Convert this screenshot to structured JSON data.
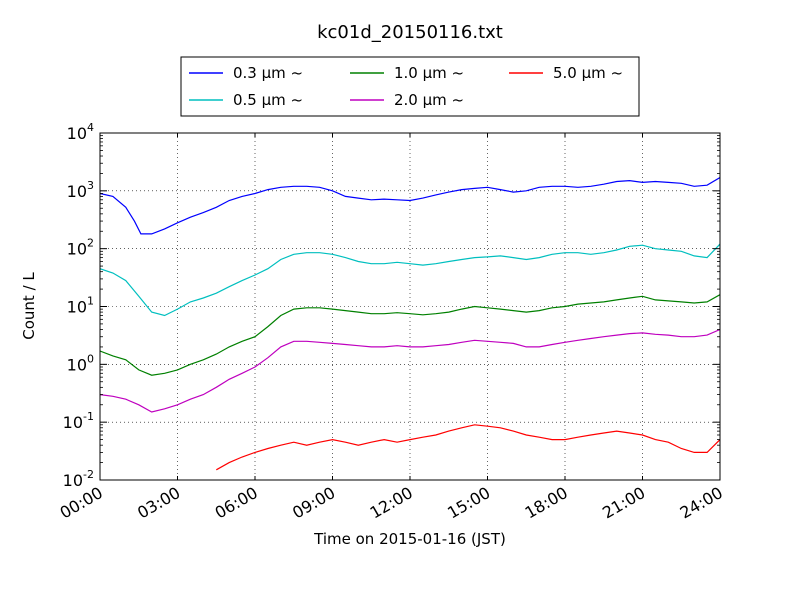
{
  "chart_data": {
    "type": "line",
    "title": "kc01d_20150116.txt",
    "xlabel": "Time on 2015-01-16 (JST)",
    "ylabel": "Count / L",
    "yscale": "log",
    "ylim": [
      0.01,
      10000
    ],
    "xlim": [
      "2015-01-16 00:00",
      "2015-01-17 00:00"
    ],
    "x_tick_labels": [
      "00:00",
      "03:00",
      "06:00",
      "09:00",
      "12:00",
      "15:00",
      "18:00",
      "21:00",
      "24:00"
    ],
    "y_tick_labels": [
      {
        "base": "10",
        "exp": "-2"
      },
      {
        "base": "10",
        "exp": "-1"
      },
      {
        "base": "10",
        "exp": "0"
      },
      {
        "base": "10",
        "exp": "1"
      },
      {
        "base": "10",
        "exp": "2"
      },
      {
        "base": "10",
        "exp": "3"
      },
      {
        "base": "10",
        "exp": "4"
      }
    ],
    "grid": true,
    "legend_placement": "top",
    "series": [
      {
        "name": "0.3 μm ~",
        "color": "#0000ff",
        "x": [
          "00:00",
          "00:30",
          "01:00",
          "01:20",
          "01:35",
          "02:00",
          "02:30",
          "03:00",
          "03:30",
          "04:00",
          "04:30",
          "05:00",
          "05:30",
          "06:00",
          "06:30",
          "07:00",
          "07:30",
          "08:00",
          "08:30",
          "09:00",
          "09:30",
          "10:00",
          "10:30",
          "11:00",
          "11:30",
          "12:00",
          "12:30",
          "13:00",
          "13:30",
          "14:00",
          "14:30",
          "15:00",
          "15:30",
          "16:00",
          "16:30",
          "17:00",
          "17:30",
          "18:00",
          "18:30",
          "19:00",
          "19:30",
          "20:00",
          "20:30",
          "21:00",
          "21:30",
          "22:00",
          "22:30",
          "23:00",
          "23:30",
          "24:00"
        ],
        "y": [
          900,
          800,
          520,
          300,
          180,
          180,
          220,
          280,
          350,
          420,
          520,
          680,
          800,
          900,
          1050,
          1150,
          1200,
          1200,
          1150,
          1000,
          800,
          750,
          700,
          720,
          700,
          680,
          750,
          850,
          950,
          1050,
          1100,
          1150,
          1050,
          950,
          1000,
          1150,
          1200,
          1200,
          1150,
          1200,
          1300,
          1450,
          1500,
          1400,
          1450,
          1400,
          1350,
          1200,
          1250,
          1700
        ]
      },
      {
        "name": "0.5 μm ~",
        "color": "#00bfbf",
        "x": [
          "00:00",
          "00:30",
          "01:00",
          "01:30",
          "02:00",
          "02:30",
          "03:00",
          "03:30",
          "04:00",
          "04:30",
          "05:00",
          "05:30",
          "06:00",
          "06:30",
          "07:00",
          "07:30",
          "08:00",
          "08:30",
          "09:00",
          "09:30",
          "10:00",
          "10:30",
          "11:00",
          "11:30",
          "12:00",
          "12:30",
          "13:00",
          "13:30",
          "14:00",
          "14:30",
          "15:00",
          "15:30",
          "16:00",
          "16:30",
          "17:00",
          "17:30",
          "18:00",
          "18:30",
          "19:00",
          "19:30",
          "20:00",
          "20:30",
          "21:00",
          "21:30",
          "22:00",
          "22:30",
          "23:00",
          "23:30",
          "24:00"
        ],
        "y": [
          45,
          38,
          28,
          15,
          8,
          7,
          9,
          12,
          14,
          17,
          22,
          28,
          35,
          45,
          65,
          80,
          85,
          85,
          80,
          70,
          60,
          55,
          55,
          58,
          55,
          52,
          55,
          60,
          65,
          70,
          72,
          75,
          70,
          65,
          70,
          80,
          85,
          85,
          80,
          85,
          95,
          110,
          115,
          100,
          95,
          90,
          75,
          70,
          120
        ]
      },
      {
        "name": "1.0 μm ~",
        "color": "#008000",
        "x": [
          "00:00",
          "00:30",
          "01:00",
          "01:30",
          "02:00",
          "02:30",
          "03:00",
          "03:30",
          "04:00",
          "04:30",
          "05:00",
          "05:30",
          "06:00",
          "06:30",
          "07:00",
          "07:30",
          "08:00",
          "08:30",
          "09:00",
          "09:30",
          "10:00",
          "10:30",
          "11:00",
          "11:30",
          "12:00",
          "12:30",
          "13:00",
          "13:30",
          "14:00",
          "14:30",
          "15:00",
          "15:30",
          "16:00",
          "16:30",
          "17:00",
          "17:30",
          "18:00",
          "18:30",
          "19:00",
          "19:30",
          "20:00",
          "20:30",
          "21:00",
          "21:30",
          "22:00",
          "22:30",
          "23:00",
          "23:30",
          "24:00"
        ],
        "y": [
          1.7,
          1.4,
          1.2,
          0.8,
          0.65,
          0.7,
          0.8,
          1.0,
          1.2,
          1.5,
          2.0,
          2.5,
          3.0,
          4.5,
          7.0,
          9.0,
          9.5,
          9.5,
          9.0,
          8.5,
          8.0,
          7.5,
          7.5,
          7.8,
          7.5,
          7.2,
          7.5,
          8.0,
          9.0,
          10.0,
          9.5,
          9.0,
          8.5,
          8.0,
          8.5,
          9.5,
          10,
          11,
          11.5,
          12,
          13,
          14,
          15,
          13,
          12.5,
          12,
          11.5,
          12,
          16
        ]
      },
      {
        "name": "2.0 μm ~",
        "color": "#bf00bf",
        "x": [
          "00:00",
          "00:30",
          "01:00",
          "01:30",
          "02:00",
          "02:30",
          "03:00",
          "03:30",
          "04:00",
          "04:30",
          "05:00",
          "05:30",
          "06:00",
          "06:30",
          "07:00",
          "07:30",
          "08:00",
          "08:30",
          "09:00",
          "09:30",
          "10:00",
          "10:30",
          "11:00",
          "11:30",
          "12:00",
          "12:30",
          "13:00",
          "13:30",
          "14:00",
          "14:30",
          "15:00",
          "15:30",
          "16:00",
          "16:30",
          "17:00",
          "17:30",
          "18:00",
          "18:30",
          "19:00",
          "19:30",
          "20:00",
          "20:30",
          "21:00",
          "21:30",
          "22:00",
          "22:30",
          "23:00",
          "23:30",
          "24:00"
        ],
        "y": [
          0.3,
          0.28,
          0.25,
          0.2,
          0.15,
          0.17,
          0.2,
          0.25,
          0.3,
          0.4,
          0.55,
          0.7,
          0.9,
          1.3,
          2.0,
          2.5,
          2.5,
          2.4,
          2.3,
          2.2,
          2.1,
          2.0,
          2.0,
          2.1,
          2.0,
          2.0,
          2.1,
          2.2,
          2.4,
          2.6,
          2.5,
          2.4,
          2.3,
          2.0,
          2.0,
          2.2,
          2.4,
          2.6,
          2.8,
          3.0,
          3.2,
          3.4,
          3.5,
          3.3,
          3.2,
          3.0,
          3.0,
          3.2,
          4.0
        ]
      },
      {
        "name": "5.0 μm ~",
        "color": "#ff0000",
        "x": [
          "04:30",
          "05:00",
          "05:30",
          "06:00",
          "06:30",
          "07:00",
          "07:30",
          "08:00",
          "08:30",
          "09:00",
          "09:30",
          "10:00",
          "10:30",
          "11:00",
          "11:30",
          "12:00",
          "12:30",
          "13:00",
          "13:30",
          "14:00",
          "14:30",
          "15:00",
          "15:30",
          "16:00",
          "16:30",
          "17:00",
          "17:30",
          "18:00",
          "18:30",
          "19:00",
          "19:30",
          "20:00",
          "20:30",
          "21:00",
          "21:30",
          "22:00",
          "22:30",
          "23:00",
          "23:30",
          "24:00"
        ],
        "y": [
          0.015,
          0.02,
          0.025,
          0.03,
          0.035,
          0.04,
          0.045,
          0.04,
          0.045,
          0.05,
          0.045,
          0.04,
          0.045,
          0.05,
          0.045,
          0.05,
          0.055,
          0.06,
          0.07,
          0.08,
          0.09,
          0.085,
          0.08,
          0.07,
          0.06,
          0.055,
          0.05,
          0.05,
          0.055,
          0.06,
          0.065,
          0.07,
          0.065,
          0.06,
          0.05,
          0.045,
          0.035,
          0.03,
          0.03,
          0.05
        ]
      }
    ]
  }
}
